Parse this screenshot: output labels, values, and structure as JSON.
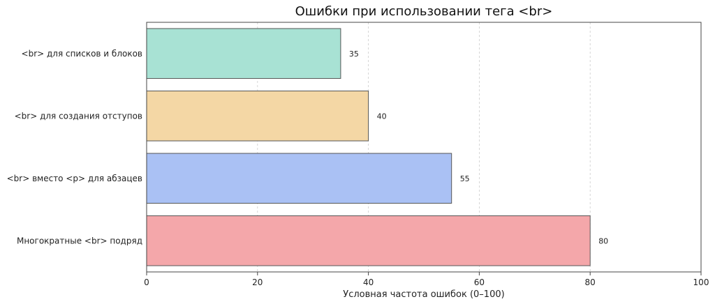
{
  "chart_data": {
    "type": "bar",
    "orientation": "horizontal",
    "title": "Ошибки при использовании тега <br>",
    "xlabel": "Условная частота ошибок (0–100)",
    "ylabel": "",
    "xlim": [
      0,
      100
    ],
    "xticks": [
      "0",
      "20",
      "40",
      "60",
      "80",
      "100"
    ],
    "xtick_values": [
      0,
      20,
      40,
      60,
      80,
      100
    ],
    "grid": "vertical dashed",
    "categories": [
      "<br> для списков и блоков",
      "<br> для создания отступов",
      "<br> вместо <p> для абзацев",
      "Многократные <br> подряд"
    ],
    "values": [
      35,
      40,
      55,
      80
    ],
    "value_labels": [
      "35",
      "40",
      "55",
      "80"
    ],
    "colors": [
      "#a8e2d4",
      "#f4d7a5",
      "#aac1f4",
      "#f4a7aa"
    ],
    "edge_color": "#555555"
  }
}
